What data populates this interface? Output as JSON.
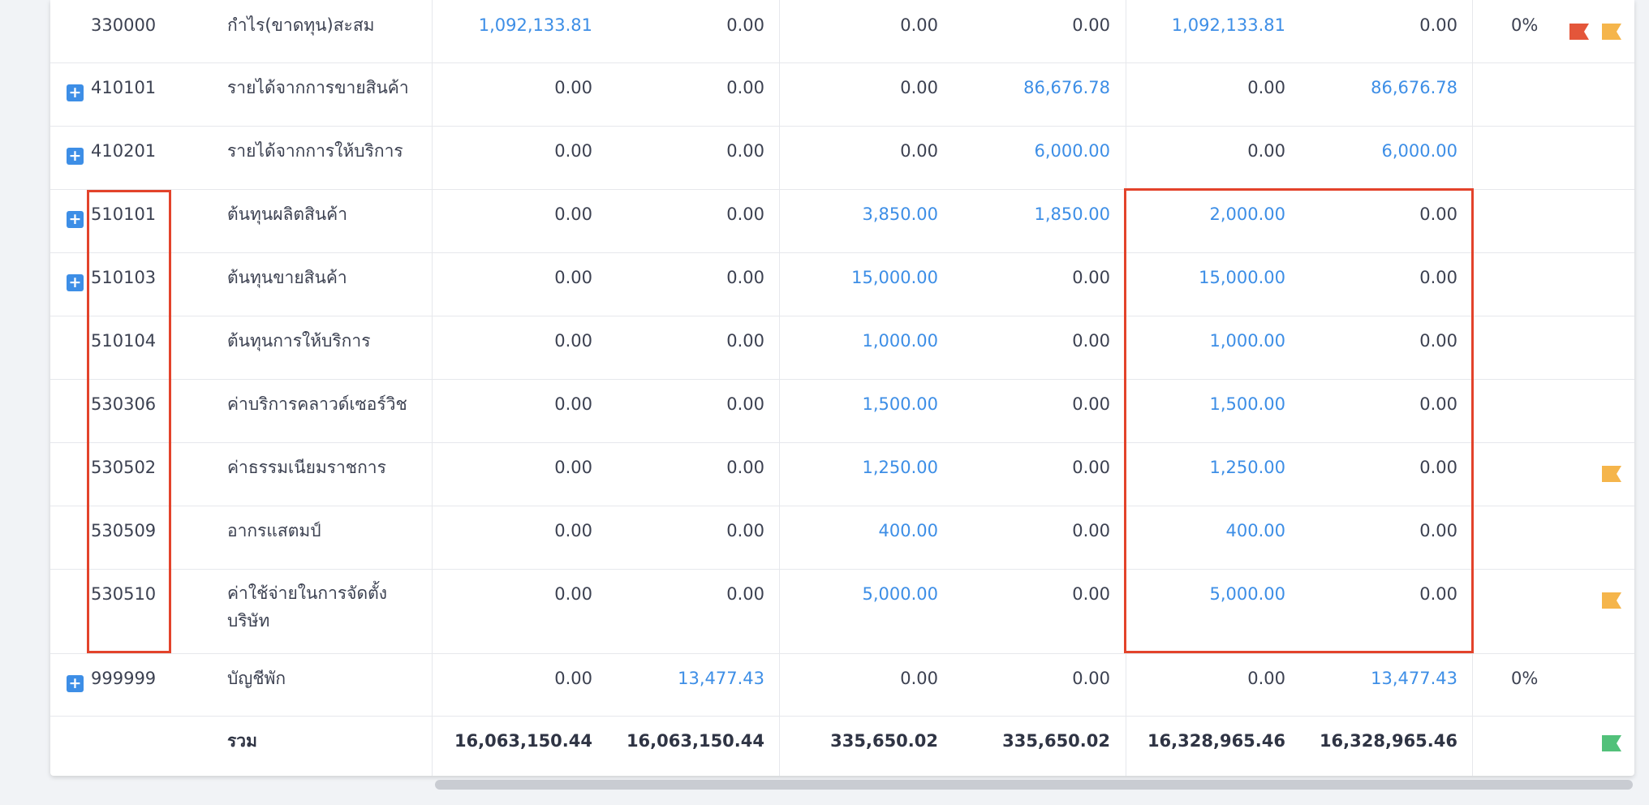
{
  "rows": [
    {
      "code": "330000",
      "name": "กำไร(ขาดทุน)สะสม",
      "expand": false,
      "c1": "1,092,133.81",
      "c2": "0.00",
      "c3": "0.00",
      "c4": "0.00",
      "c5": "1,092,133.81",
      "c6": "0.00",
      "pct": "0%"
    },
    {
      "code": "410101",
      "name": "รายได้จากการขายสินค้า",
      "expand": true,
      "c1": "0.00",
      "c2": "0.00",
      "c3": "0.00",
      "c4": "86,676.78",
      "c5": "0.00",
      "c6": "86,676.78",
      "pct": ""
    },
    {
      "code": "410201",
      "name": "รายได้จากการให้บริการ",
      "expand": true,
      "c1": "0.00",
      "c2": "0.00",
      "c3": "0.00",
      "c4": "6,000.00",
      "c5": "0.00",
      "c6": "6,000.00",
      "pct": ""
    },
    {
      "code": "510101",
      "name": "ต้นทุนผลิตสินค้า",
      "expand": true,
      "c1": "0.00",
      "c2": "0.00",
      "c3": "3,850.00",
      "c4": "1,850.00",
      "c5": "2,000.00",
      "c6": "0.00",
      "pct": ""
    },
    {
      "code": "510103",
      "name": "ต้นทุนขายสินค้า",
      "expand": true,
      "c1": "0.00",
      "c2": "0.00",
      "c3": "15,000.00",
      "c4": "0.00",
      "c5": "15,000.00",
      "c6": "0.00",
      "pct": ""
    },
    {
      "code": "510104",
      "name": "ต้นทุนการให้บริการ",
      "expand": false,
      "c1": "0.00",
      "c2": "0.00",
      "c3": "1,000.00",
      "c4": "0.00",
      "c5": "1,000.00",
      "c6": "0.00",
      "pct": ""
    },
    {
      "code": "530306",
      "name": "ค่าบริการคลาวด์เซอร์วิช",
      "expand": false,
      "c1": "0.00",
      "c2": "0.00",
      "c3": "1,500.00",
      "c4": "0.00",
      "c5": "1,500.00",
      "c6": "0.00",
      "pct": ""
    },
    {
      "code": "530502",
      "name": "ค่าธรรมเนียมราชการ",
      "expand": false,
      "c1": "0.00",
      "c2": "0.00",
      "c3": "1,250.00",
      "c4": "0.00",
      "c5": "1,250.00",
      "c6": "0.00",
      "pct": ""
    },
    {
      "code": "530509",
      "name": "อากรแสตมป์",
      "expand": false,
      "c1": "0.00",
      "c2": "0.00",
      "c3": "400.00",
      "c4": "0.00",
      "c5": "400.00",
      "c6": "0.00",
      "pct": ""
    },
    {
      "code": "530510",
      "name": "ค่าใช้จ่ายในการจัดตั้ง บริษัท",
      "expand": false,
      "c1": "0.00",
      "c2": "0.00",
      "c3": "5,000.00",
      "c4": "0.00",
      "c5": "5,000.00",
      "c6": "0.00",
      "pct": ""
    },
    {
      "code": "999999",
      "name": "บัญชีพัก",
      "expand": true,
      "c1": "0.00",
      "c2": "13,477.43",
      "c3": "0.00",
      "c4": "0.00",
      "c5": "0.00",
      "c6": "13,477.43",
      "pct": "0%"
    }
  ],
  "total": {
    "label": "รวม",
    "c1": "16,063,150.44",
    "c2": "16,063,150.44",
    "c3": "335,650.02",
    "c4": "335,650.02",
    "c5": "16,328,965.46",
    "c6": "16,328,965.46"
  },
  "expand_icon": "plus-square-icon",
  "colors": {
    "link": "#3d8ee6",
    "flag_red": "#e4563a",
    "flag_orange": "#f5b54b",
    "flag_green": "#52c17a",
    "highlight": "#e3432b"
  }
}
